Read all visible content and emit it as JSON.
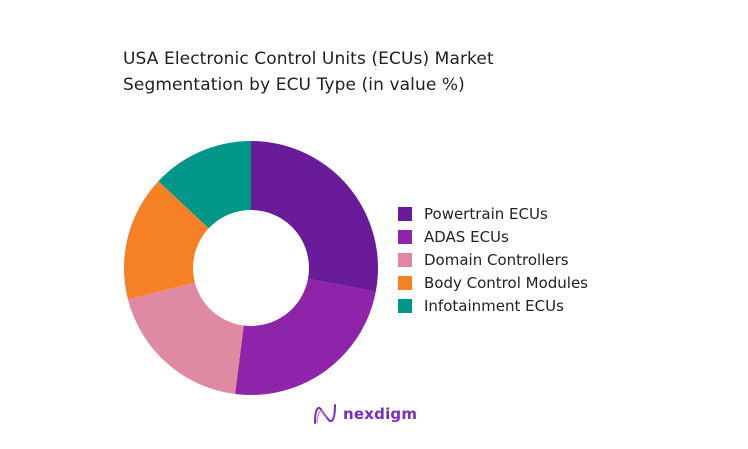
{
  "title": {
    "line1": "USA Electronic Control Units (ECUs) Market",
    "line2": "Segmentation by ECU Type (in value %)"
  },
  "chart_data": {
    "type": "pie",
    "subtype": "donut",
    "title": "USA Electronic Control Units (ECUs) Market Segmentation by ECU Type (in value %)",
    "categories": [
      "Powertrain ECUs",
      "ADAS ECUs",
      "Domain Controllers",
      "Body Control Modules",
      "Infotainment ECUs"
    ],
    "values": [
      28,
      24,
      19,
      16,
      13
    ],
    "colors": [
      "#6a1b9a",
      "#8e24aa",
      "#df89a2",
      "#f58025",
      "#009688"
    ],
    "start_angle_deg": 0,
    "direction": "clockwise",
    "legend_position": "right",
    "data_labels": false
  },
  "legend": {
    "items": [
      {
        "label": "Powertrain ECUs",
        "color": "#6a1b9a"
      },
      {
        "label": "ADAS ECUs",
        "color": "#8e24aa"
      },
      {
        "label": "Domain Controllers",
        "color": "#df89a2"
      },
      {
        "label": "Body Control Modules",
        "color": "#f58025"
      },
      {
        "label": "Infotainment ECUs",
        "color": "#009688"
      }
    ]
  },
  "brand": {
    "name": "nexdigm",
    "color": "#7b2cbf"
  }
}
